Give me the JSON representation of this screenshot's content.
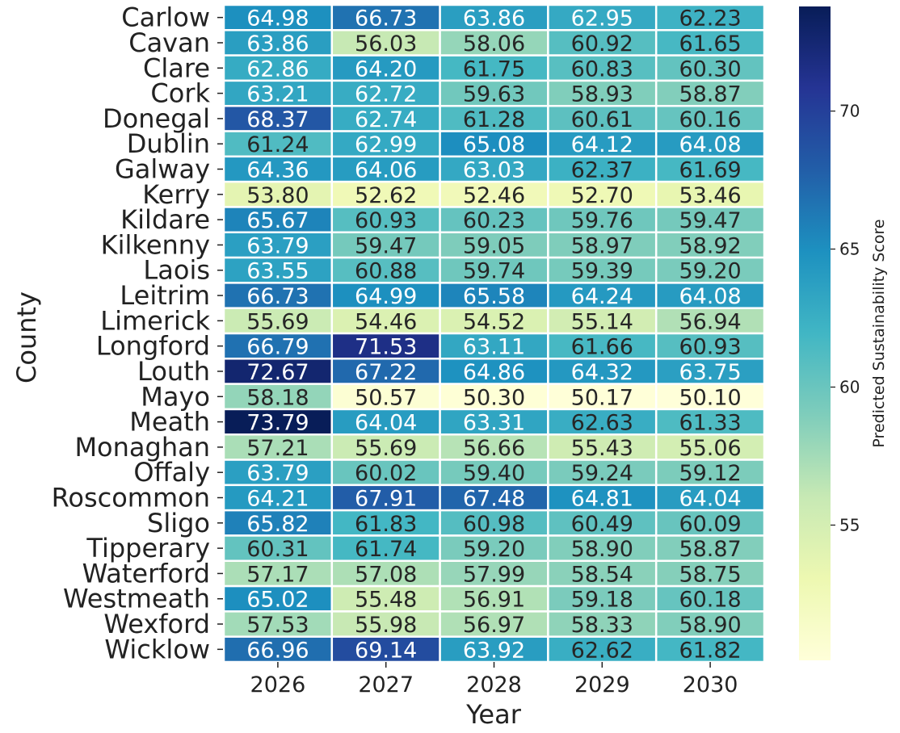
{
  "chart_data": {
    "type": "heatmap",
    "xlabel": "Year",
    "ylabel": "County",
    "colorbar_label": "Predicted Sustainability Score",
    "colorbar_ticks": [
      55,
      60,
      65,
      70
    ],
    "color_range": [
      50.1,
      73.79
    ],
    "colormap": "YlGnBu",
    "years": [
      "2026",
      "2027",
      "2028",
      "2029",
      "2030"
    ],
    "counties": [
      "Carlow",
      "Cavan",
      "Clare",
      "Cork",
      "Donegal",
      "Dublin",
      "Galway",
      "Kerry",
      "Kildare",
      "Kilkenny",
      "Laois",
      "Leitrim",
      "Limerick",
      "Longford",
      "Louth",
      "Mayo",
      "Meath",
      "Monaghan",
      "Offaly",
      "Roscommon",
      "Sligo",
      "Tipperary",
      "Waterford",
      "Westmeath",
      "Wexford",
      "Wicklow"
    ],
    "values": [
      [
        64.98,
        66.73,
        63.86,
        62.95,
        62.23
      ],
      [
        63.86,
        56.03,
        58.06,
        60.92,
        61.65
      ],
      [
        62.86,
        64.2,
        61.75,
        60.83,
        60.3
      ],
      [
        63.21,
        62.72,
        59.63,
        58.93,
        58.87
      ],
      [
        68.37,
        62.74,
        61.28,
        60.61,
        60.16
      ],
      [
        61.24,
        62.99,
        65.08,
        64.12,
        64.08
      ],
      [
        64.36,
        64.06,
        63.03,
        62.37,
        61.69
      ],
      [
        53.8,
        52.62,
        52.46,
        52.7,
        53.46
      ],
      [
        65.67,
        60.93,
        60.23,
        59.76,
        59.47
      ],
      [
        63.79,
        59.47,
        59.05,
        58.97,
        58.92
      ],
      [
        63.55,
        60.88,
        59.74,
        59.39,
        59.2
      ],
      [
        66.73,
        64.99,
        65.58,
        64.24,
        64.08
      ],
      [
        55.69,
        54.46,
        54.52,
        55.14,
        56.94
      ],
      [
        66.79,
        71.53,
        63.11,
        61.66,
        60.93
      ],
      [
        72.67,
        67.22,
        64.86,
        64.32,
        63.75
      ],
      [
        58.18,
        50.57,
        50.3,
        50.17,
        50.1
      ],
      [
        73.79,
        64.04,
        63.31,
        62.63,
        61.33
      ],
      [
        57.21,
        55.69,
        56.66,
        55.43,
        55.06
      ],
      [
        63.79,
        60.02,
        59.4,
        59.24,
        59.12
      ],
      [
        64.21,
        67.91,
        67.48,
        64.81,
        64.04
      ],
      [
        65.82,
        61.83,
        60.98,
        60.49,
        60.09
      ],
      [
        60.31,
        61.74,
        59.2,
        58.9,
        58.87
      ],
      [
        57.17,
        57.08,
        57.99,
        58.54,
        58.75
      ],
      [
        65.02,
        55.48,
        56.91,
        59.18,
        60.18
      ],
      [
        57.53,
        55.98,
        56.97,
        58.33,
        58.9
      ],
      [
        66.96,
        69.14,
        63.92,
        62.62,
        61.82
      ]
    ]
  }
}
